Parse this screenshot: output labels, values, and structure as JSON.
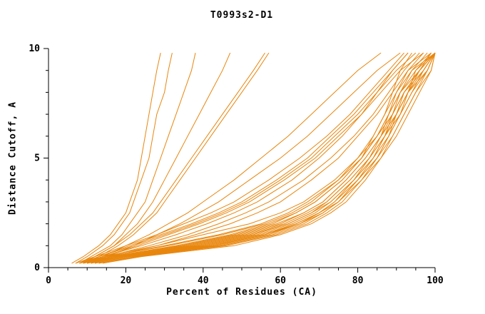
{
  "title": "T0993s2-D1",
  "chart_data": {
    "type": "line",
    "title": "T0993s2-D1",
    "xlabel": "Percent of Residues (CA)",
    "ylabel": "Distance Cutoff, A",
    "xlim": [
      0,
      100
    ],
    "ylim": [
      0,
      10
    ],
    "x_ticks": [
      0,
      20,
      40,
      60,
      80,
      100
    ],
    "y_ticks": [
      0,
      5,
      10
    ],
    "x_minor_step": 5,
    "y_minor_step": 1,
    "grid": false,
    "legend": "none",
    "line_color": "#e8860d",
    "y_grid": [
      0.2,
      0.5,
      1,
      1.5,
      2,
      2.5,
      3,
      4,
      5,
      6,
      7,
      8,
      9,
      9.8
    ],
    "curves": [
      [
        10,
        16,
        34,
        48,
        58,
        64,
        69,
        76,
        81,
        84,
        87,
        89,
        91,
        97
      ],
      [
        11,
        18,
        38,
        52,
        62,
        68,
        72,
        78,
        83,
        86,
        88,
        90,
        93,
        99
      ],
      [
        9,
        15,
        30,
        44,
        55,
        62,
        67,
        75,
        80,
        84,
        87,
        90,
        94,
        100
      ],
      [
        12,
        20,
        42,
        56,
        65,
        70,
        74,
        80,
        84,
        87,
        89,
        91,
        95,
        100
      ],
      [
        8,
        14,
        28,
        40,
        52,
        60,
        66,
        74,
        80,
        85,
        88,
        91,
        96,
        100
      ],
      [
        13,
        22,
        45,
        58,
        66,
        71,
        75,
        81,
        85,
        88,
        90,
        92,
        96,
        99
      ],
      [
        10,
        17,
        36,
        50,
        60,
        66,
        71,
        77,
        82,
        86,
        89,
        92,
        97,
        100
      ],
      [
        11,
        19,
        40,
        54,
        63,
        69,
        73,
        79,
        84,
        87,
        90,
        93,
        98,
        100
      ],
      [
        9,
        16,
        33,
        47,
        57,
        64,
        69,
        76,
        81,
        85,
        88,
        91,
        94,
        98
      ],
      [
        12,
        21,
        44,
        57,
        65,
        71,
        75,
        80,
        85,
        88,
        91,
        94,
        97,
        100
      ],
      [
        10,
        18,
        37,
        51,
        61,
        67,
        72,
        78,
        83,
        87,
        90,
        93,
        95,
        99
      ],
      [
        8,
        15,
        31,
        45,
        56,
        63,
        68,
        75,
        81,
        85,
        89,
        92,
        96,
        100
      ],
      [
        11,
        19,
        41,
        55,
        64,
        70,
        74,
        79,
        84,
        88,
        91,
        93,
        96,
        100
      ],
      [
        13,
        23,
        46,
        59,
        67,
        72,
        76,
        81,
        86,
        89,
        92,
        95,
        98,
        100
      ],
      [
        9,
        17,
        35,
        49,
        59,
        66,
        71,
        77,
        82,
        86,
        90,
        93,
        97,
        100
      ],
      [
        10,
        18,
        39,
        53,
        62,
        68,
        73,
        79,
        83,
        87,
        91,
        94,
        98,
        100
      ],
      [
        12,
        20,
        43,
        56,
        64,
        70,
        75,
        80,
        85,
        89,
        92,
        95,
        99,
        100
      ],
      [
        14,
        24,
        48,
        60,
        68,
        73,
        77,
        82,
        86,
        90,
        93,
        96,
        99,
        100
      ],
      [
        9,
        14,
        24,
        33,
        41,
        48,
        54,
        63,
        70,
        76,
        81,
        85,
        90,
        95
      ],
      [
        10,
        15,
        26,
        36,
        44,
        51,
        57,
        66,
        73,
        79,
        84,
        88,
        92,
        96
      ],
      [
        8,
        13,
        22,
        30,
        38,
        45,
        51,
        60,
        68,
        74,
        80,
        85,
        89,
        93
      ],
      [
        11,
        16,
        28,
        38,
        47,
        54,
        60,
        68,
        75,
        80,
        85,
        89,
        93,
        97
      ],
      [
        7,
        12,
        20,
        28,
        35,
        42,
        48,
        57,
        65,
        72,
        78,
        83,
        88,
        92
      ],
      [
        10,
        14,
        23,
        31,
        39,
        46,
        52,
        61,
        69,
        75,
        81,
        86,
        91,
        94
      ],
      [
        9,
        13,
        21,
        29,
        37,
        44,
        50,
        59,
        67,
        73,
        79,
        84,
        89,
        93
      ],
      [
        8,
        11,
        16,
        19,
        21,
        23,
        25,
        27,
        29,
        31,
        33,
        35,
        37,
        38
      ],
      [
        7,
        10,
        14,
        17,
        19,
        21,
        22,
        24,
        26,
        27,
        28,
        30,
        31,
        32
      ],
      [
        9,
        12,
        17,
        20,
        23,
        25,
        27,
        30,
        33,
        36,
        39,
        42,
        45,
        47
      ],
      [
        10,
        13,
        18,
        22,
        25,
        28,
        30,
        34,
        38,
        42,
        46,
        50,
        54,
        57
      ],
      [
        6,
        9,
        13,
        16,
        18,
        20,
        21,
        23,
        24,
        25,
        26,
        27,
        28,
        29
      ],
      [
        8,
        12,
        17,
        21,
        24,
        27,
        29,
        33,
        37,
        41,
        45,
        49,
        53,
        56
      ],
      [
        9,
        14,
        20,
        26,
        31,
        36,
        40,
        48,
        55,
        62,
        68,
        74,
        80,
        86
      ],
      [
        10,
        15,
        22,
        28,
        34,
        39,
        44,
        52,
        60,
        67,
        73,
        79,
        85,
        91
      ]
    ]
  }
}
